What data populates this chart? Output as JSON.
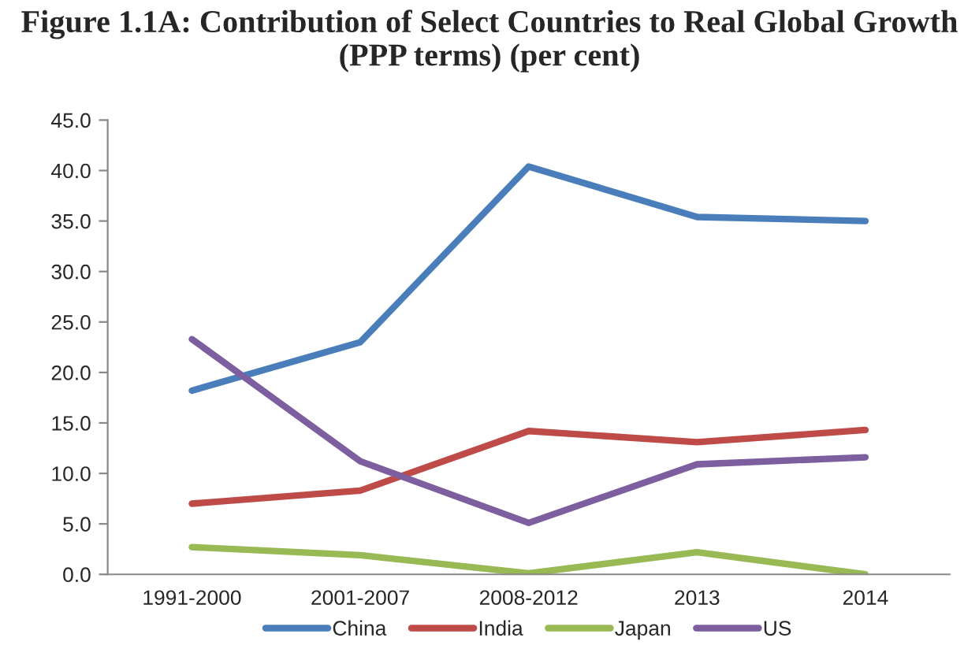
{
  "chart_data": {
    "type": "line",
    "title": "Figure 1.1A: Contribution of Select Countries to Real Global Growth (PPP terms) (per cent)",
    "categories": [
      "1991-2000",
      "2001-2007",
      "2008-2012",
      "2013",
      "2014"
    ],
    "series": [
      {
        "name": "China",
        "color": "#4a7ebb",
        "values": [
          18.2,
          23.0,
          40.4,
          35.4,
          35.0
        ]
      },
      {
        "name": "India",
        "color": "#be4b48",
        "values": [
          7.0,
          8.3,
          14.2,
          13.1,
          14.3
        ]
      },
      {
        "name": "Japan",
        "color": "#98b954",
        "values": [
          2.7,
          1.9,
          0.1,
          2.2,
          0.0
        ]
      },
      {
        "name": "US",
        "color": "#7d5fa0",
        "values": [
          23.3,
          11.2,
          5.1,
          10.9,
          11.6
        ]
      }
    ],
    "ylim": [
      0,
      45
    ],
    "yticks": [
      {
        "value": 0,
        "label": "0.0"
      },
      {
        "value": 5,
        "label": "5.0"
      },
      {
        "value": 10,
        "label": "10.0"
      },
      {
        "value": 15,
        "label": "15.0"
      },
      {
        "value": 20,
        "label": "20.0"
      },
      {
        "value": 25,
        "label": "25.0"
      },
      {
        "value": 30,
        "label": "30.0"
      },
      {
        "value": 35,
        "label": "35.0"
      },
      {
        "value": 40,
        "label": "40.0"
      },
      {
        "value": 45,
        "label": "45.0"
      }
    ],
    "grid": false,
    "legend": "bottom",
    "marker": "none",
    "line_style": "solid"
  }
}
